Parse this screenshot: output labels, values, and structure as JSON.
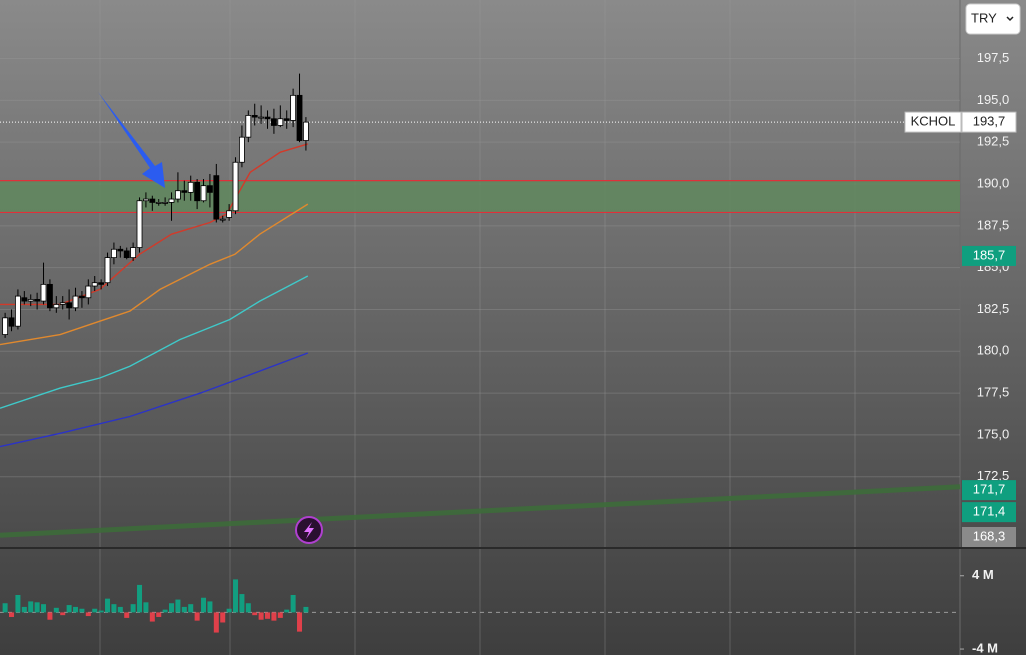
{
  "chart_data": {
    "type": "candlestick",
    "symbol": "KCHOL",
    "currency": "TRY",
    "up_color": "#ffffff",
    "down_color": "#000000",
    "open": [
      181.0,
      182.0,
      181.5,
      183.2,
      183.0,
      183.1,
      183.0,
      184.0,
      182.6,
      182.8,
      182.9,
      182.6,
      183.3,
      183.2,
      183.9,
      184.1,
      184.1,
      185.6,
      186.1,
      186.0,
      185.6,
      186.2,
      189.0,
      189.1,
      188.9,
      188.9,
      188.9,
      189.1,
      189.6,
      189.5,
      190.1,
      189.0,
      189.9,
      190.5,
      187.9,
      188.0,
      188.4,
      191.3,
      192.8,
      194.1,
      194.0,
      194.0,
      193.9,
      193.5,
      193.9,
      193.8,
      195.3,
      192.6
    ],
    "high": [
      182.3,
      182.5,
      183.7,
      183.6,
      183.4,
      183.5,
      185.3,
      184.3,
      183.3,
      183.3,
      183.7,
      183.8,
      183.6,
      184.3,
      184.5,
      184.3,
      185.9,
      186.5,
      186.3,
      186.2,
      186.5,
      189.2,
      189.5,
      189.3,
      189.1,
      189.2,
      189.5,
      190.7,
      190.2,
      190.5,
      190.3,
      190.3,
      190.6,
      191.2,
      188.1,
      188.8,
      191.6,
      193.5,
      194.4,
      194.8,
      194.7,
      194.4,
      194.5,
      194.7,
      194.4,
      195.7,
      196.6,
      194.0
    ],
    "low": [
      180.8,
      181.2,
      181.3,
      182.8,
      182.7,
      182.5,
      182.8,
      182.4,
      182.3,
      182.5,
      181.9,
      182.4,
      182.6,
      182.8,
      183.6,
      183.7,
      183.9,
      185.2,
      185.6,
      185.5,
      185.4,
      185.9,
      188.6,
      188.4,
      188.7,
      188.7,
      187.8,
      188.9,
      189.0,
      189.0,
      188.5,
      188.9,
      188.6,
      187.7,
      187.7,
      187.8,
      188.2,
      191.0,
      192.5,
      193.5,
      193.6,
      193.3,
      193.0,
      193.4,
      193.3,
      193.4,
      192.5,
      192.0
    ],
    "close": [
      182.0,
      181.5,
      183.3,
      183.0,
      183.1,
      183.0,
      184.0,
      182.6,
      182.8,
      182.9,
      182.6,
      183.3,
      183.2,
      183.9,
      184.1,
      184.0,
      185.6,
      186.1,
      186.0,
      185.6,
      186.2,
      189.0,
      189.1,
      188.9,
      188.9,
      188.9,
      189.1,
      189.6,
      189.5,
      190.1,
      189.0,
      189.9,
      189.5,
      187.9,
      187.9,
      188.4,
      191.3,
      192.8,
      194.1,
      194.0,
      194.0,
      193.9,
      193.5,
      193.9,
      193.8,
      195.3,
      192.6,
      193.7
    ],
    "xlim": [
      -0.8,
      149.2
    ],
    "ylim": [
      168.3,
      201.0
    ],
    "yticks": [
      {
        "value": 172.5,
        "label": "172,5"
      },
      {
        "value": 175.0,
        "label": "175,0"
      },
      {
        "value": 177.5,
        "label": "177,5"
      },
      {
        "value": 180.0,
        "label": "180,0"
      },
      {
        "value": 182.5,
        "label": "182,5"
      },
      {
        "value": 185.0,
        "label": "185,0"
      },
      {
        "value": 187.5,
        "label": "187,5"
      },
      {
        "value": 190.0,
        "label": "190,0"
      },
      {
        "value": 192.5,
        "label": "192,5"
      },
      {
        "value": 195.0,
        "label": "195,0"
      },
      {
        "value": 197.5,
        "label": "197,5"
      }
    ],
    "grid": true,
    "lines": [
      {
        "color": "#d23a2a",
        "x": [
          -0.8,
          8.6,
          14.8,
          21,
          26,
          32,
          34.6,
          38.3,
          43,
          47.3
        ],
        "values": [
          182.8,
          182.8,
          183.7,
          185.8,
          187.0,
          187.7,
          188.2,
          190.7,
          191.9,
          192.4
        ]
      },
      {
        "color": "#e0892e",
        "x": [
          -0.8,
          8.6,
          14.8,
          19.5,
          24.2,
          32,
          35.9,
          39.8,
          47.3
        ],
        "values": [
          180.4,
          181.0,
          181.8,
          182.4,
          183.7,
          185.2,
          185.8,
          187.0,
          188.8
        ]
      },
      {
        "color": "#3fc9c9",
        "x": [
          -0.8,
          8.6,
          14.8,
          19.5,
          27.3,
          35.1,
          39.8,
          47.3
        ],
        "values": [
          176.6,
          177.8,
          178.4,
          179.1,
          180.7,
          181.9,
          183.0,
          184.5
        ]
      },
      {
        "color": "#2b33c8",
        "x": [
          -0.8,
          8.6,
          19.5,
          30.5,
          38.3,
          47.3
        ],
        "values": [
          174.3,
          175.1,
          176.1,
          177.5,
          178.6,
          179.9
        ]
      },
      {
        "color": "#3d6b3a",
        "thick": true,
        "x": [
          -0.8,
          149.2
        ],
        "values": [
          169.0,
          171.9
        ]
      }
    ],
    "levels": [
      190.2,
      188.3
    ],
    "level_color": "#e0303a",
    "zone_color": "#5f8a5c",
    "last_price": {
      "value": 193.7,
      "label": "193,7"
    },
    "price_tags": [
      {
        "value": 185.7,
        "label": "185,7",
        "color": "#0f9f7f"
      },
      {
        "value": 171.7,
        "label": "171,7",
        "color": "#0f9f7f"
      },
      {
        "value": 171.4,
        "label": "171,4",
        "color": "#0f9f7f"
      },
      {
        "value": 168.3,
        "label": "168,3",
        "color": "#8a8a8a"
      }
    ],
    "volume": {
      "values": [
        1000000,
        -500000,
        1900000,
        600000,
        1200000,
        1100000,
        900000,
        -800000,
        500000,
        -300000,
        800000,
        600000,
        400000,
        -400000,
        400000,
        200000,
        1500000,
        900000,
        600000,
        -600000,
        900000,
        3000000,
        1100000,
        -1000000,
        -500000,
        300000,
        1000000,
        1400000,
        600000,
        900000,
        -900000,
        1600000,
        1200000,
        -2200000,
        -1100000,
        400000,
        3600000,
        2000000,
        1000000,
        -300000,
        -800000,
        -700000,
        -900000,
        -600000,
        300000,
        1900000,
        -2100000,
        600000
      ],
      "up_color": "#129e80",
      "down_color": "#e0404a",
      "ylim": [
        -4650000,
        6920000
      ],
      "yticks": [
        {
          "value": 4000000,
          "label": "4 M"
        },
        {
          "value": -4000000,
          "label": "-4 M"
        }
      ]
    }
  }
}
